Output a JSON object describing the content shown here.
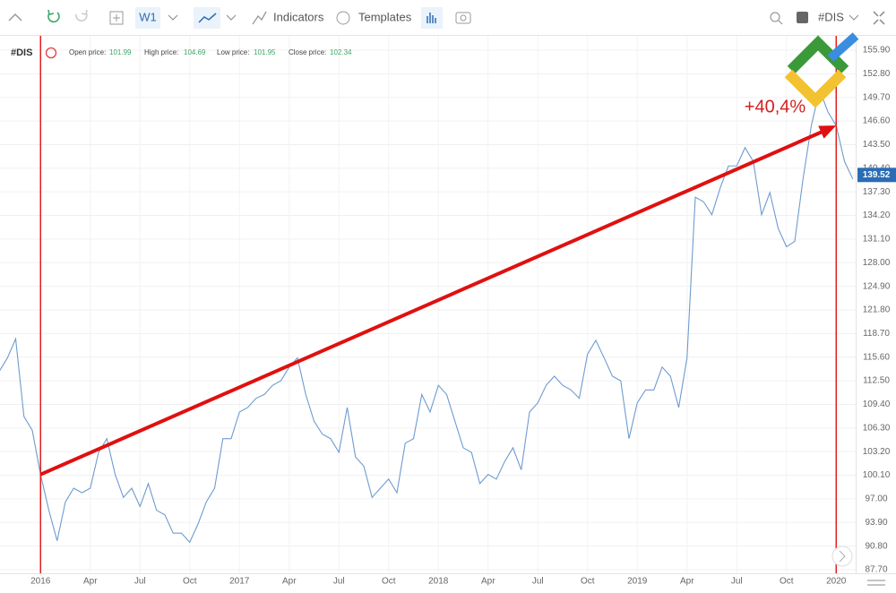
{
  "toolbar": {
    "timeframe": "W1",
    "indicators": "Indicators",
    "templates": "Templates",
    "symbol": "#DIS"
  },
  "header": {
    "symbol": "#DIS",
    "open_label": "Open price:",
    "open": "101.99",
    "high_label": "High price:",
    "high": "104.69",
    "low_label": "Low price:",
    "low": "101.95",
    "close_label": "Close price:",
    "close": "102.34"
  },
  "chart_data": {
    "type": "line",
    "color": "#6e9bd0",
    "annotation": "+40,4%",
    "last_price": 139.52,
    "categories": [
      null,
      null,
      null,
      null,
      null,
      "2016",
      null,
      null,
      null,
      null,
      null,
      "Apr",
      null,
      null,
      null,
      null,
      null,
      "Jul",
      null,
      null,
      null,
      null,
      null,
      "Oct",
      null,
      null,
      null,
      null,
      null,
      "2017",
      null,
      null,
      null,
      null,
      null,
      "Apr",
      null,
      null,
      null,
      null,
      null,
      "Jul",
      null,
      null,
      null,
      null,
      null,
      "Oct",
      null,
      null,
      null,
      null,
      null,
      "2018",
      null,
      null,
      null,
      null,
      null,
      "Apr",
      null,
      null,
      null,
      null,
      null,
      "Jul",
      null,
      null,
      null,
      null,
      null,
      "Oct",
      null,
      null,
      null,
      null,
      null,
      "2019",
      null,
      null,
      null,
      null,
      null,
      "Apr",
      null,
      null,
      null,
      null,
      null,
      "Jul",
      null,
      null,
      null,
      null,
      null,
      "Oct",
      null,
      null,
      null,
      null,
      null,
      "2020",
      null,
      null
    ],
    "values": [
      113.7,
      115.5,
      118.0,
      107.8,
      106.0,
      100.2,
      95.5,
      91.5,
      96.6,
      98.4,
      97.8,
      98.4,
      103.1,
      104.9,
      100.2,
      97.2,
      98.4,
      96.0,
      99.0,
      95.5,
      94.9,
      92.5,
      92.5,
      91.3,
      93.7,
      96.6,
      98.4,
      104.9,
      104.9,
      108.4,
      109.0,
      110.2,
      110.7,
      111.9,
      112.5,
      114.3,
      115.5,
      110.7,
      107.2,
      105.5,
      104.9,
      103.1,
      109.0,
      102.5,
      101.3,
      97.2,
      98.4,
      99.6,
      97.8,
      104.3,
      104.9,
      110.7,
      108.4,
      111.9,
      110.7,
      107.2,
      103.7,
      103.1,
      99.0,
      100.2,
      99.6,
      101.9,
      103.7,
      100.8,
      108.4,
      109.6,
      111.9,
      113.1,
      111.9,
      111.3,
      110.2,
      116.0,
      117.8,
      115.5,
      113.1,
      112.5,
      104.9,
      109.6,
      111.3,
      111.3,
      114.3,
      113.1,
      109.0,
      115.5,
      136.6,
      136.0,
      134.3,
      137.8,
      140.7,
      140.7,
      143.1,
      141.3,
      134.3,
      137.2,
      132.5,
      130.1,
      130.8,
      139.0,
      146.0,
      150.7,
      147.8,
      146.0,
      141.3,
      139.0
    ],
    "ylim": [
      87.23,
      157.78
    ],
    "yticks": [
      {
        "value": 87.7,
        "label": "87.70"
      },
      {
        "value": 90.8,
        "label": "90.80"
      },
      {
        "value": 93.9,
        "label": "93.90"
      },
      {
        "value": 97,
        "label": "97.00"
      },
      {
        "value": 100.1,
        "label": "100.10"
      },
      {
        "value": 103.2,
        "label": "103.20"
      },
      {
        "value": 106.3,
        "label": "106.30"
      },
      {
        "value": 109.4,
        "label": "109.40"
      },
      {
        "value": 112.5,
        "label": "112.50"
      },
      {
        "value": 115.6,
        "label": "115.60"
      },
      {
        "value": 118.7,
        "label": "118.70"
      },
      {
        "value": 121.8,
        "label": "121.80"
      },
      {
        "value": 124.9,
        "label": "124.90"
      },
      {
        "value": 128,
        "label": "128.00"
      },
      {
        "value": 131.1,
        "label": "131.10"
      },
      {
        "value": 134.2,
        "label": "134.20"
      },
      {
        "value": 137.3,
        "label": "137.30"
      },
      {
        "value": 140.4,
        "label": "140.40"
      },
      {
        "value": 143.5,
        "label": "143.50"
      },
      {
        "value": 146.6,
        "label": "146.60"
      },
      {
        "value": 149.7,
        "label": "149.70"
      },
      {
        "value": 152.8,
        "label": "152.80"
      },
      {
        "value": 155.9,
        "label": "155.90"
      }
    ],
    "grid": true
  }
}
